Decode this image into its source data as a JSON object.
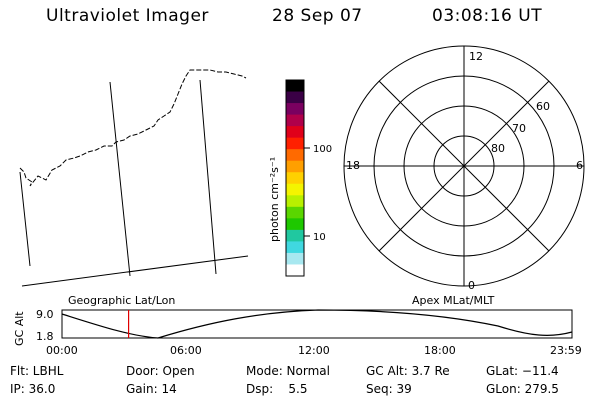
{
  "header": {
    "instrument": "Ultraviolet Imager",
    "date": "28 Sep 07",
    "time": "03:08:16 UT"
  },
  "map": {
    "caption": "Geographic Lat/Lon"
  },
  "colorbar": {
    "label": "photon cm⁻²s⁻¹",
    "ticks": [
      "100",
      "10"
    ],
    "colors": [
      "#000000",
      "#3a0045",
      "#7a0060",
      "#b0004a",
      "#e0001a",
      "#ff2000",
      "#ff6a00",
      "#ff9f00",
      "#ffd100",
      "#f4f400",
      "#b8f000",
      "#5ad600",
      "#1ec800",
      "#20c8a0",
      "#40d8e0",
      "#a8e8f0",
      "#ffffff"
    ]
  },
  "polar": {
    "caption": "Apex MLat/MLT",
    "mlt_labels": {
      "top": "12",
      "left": "18",
      "right": "6",
      "bottom": "0"
    },
    "lat_labels": [
      "60",
      "70",
      "80"
    ]
  },
  "orbit": {
    "ylabel": "GC Alt",
    "yticks": [
      "9.0",
      "1.8"
    ],
    "xticks": [
      "00:00",
      "06:00",
      "12:00",
      "18:00",
      "23:59"
    ],
    "marker_time": "03:08"
  },
  "status": {
    "row1": {
      "flt": "Flt: LBHL",
      "door": "Door: Open",
      "mode": "Mode: Normal",
      "gcalt": "GC Alt: 3.7 Re",
      "glat": "GLat: −11.4"
    },
    "row2": {
      "ip": "IP: 36.0",
      "gain": "Gain: 14",
      "dsp": "Dsp:    5.5",
      "seq": "Seq: 39",
      "glon": "GLon: 279.5"
    }
  }
}
